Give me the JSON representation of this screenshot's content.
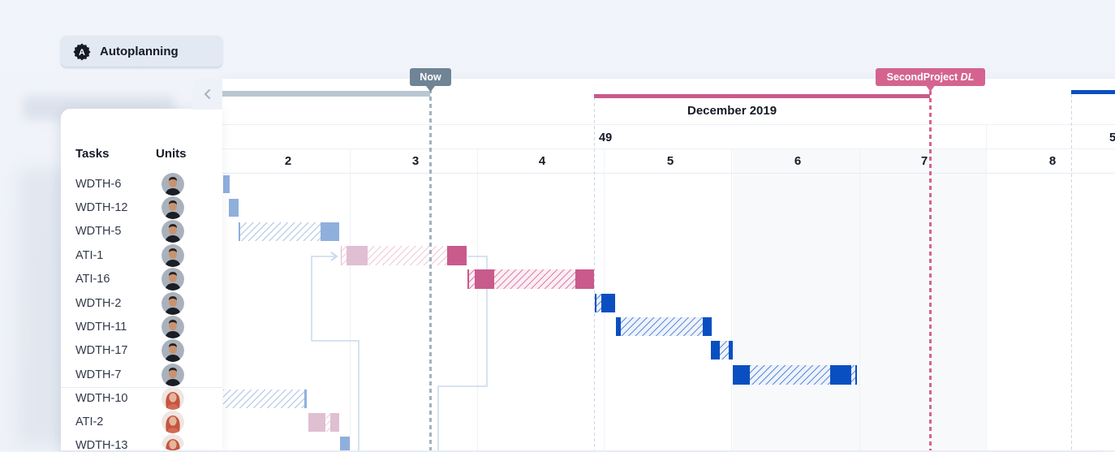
{
  "toolbar": {
    "autoplanning_label": "Autoplanning"
  },
  "left_panel": {
    "col_tasks": "Tasks",
    "col_units": "Units",
    "rows": [
      {
        "task": "WDTH-6",
        "unit": "man"
      },
      {
        "task": "WDTH-12",
        "unit": "man"
      },
      {
        "task": "WDTH-5",
        "unit": "man"
      },
      {
        "task": "ATI-1",
        "unit": "man"
      },
      {
        "task": "ATI-16",
        "unit": "man"
      },
      {
        "task": "WDTH-2",
        "unit": "man"
      },
      {
        "task": "WDTH-11",
        "unit": "man"
      },
      {
        "task": "WDTH-17",
        "unit": "man"
      },
      {
        "task": "WDTH-7",
        "unit": "man"
      },
      {
        "task": "WDTH-10",
        "unit": "woman"
      },
      {
        "task": "ATI-2",
        "unit": "woman"
      },
      {
        "task": "WDTH-13",
        "unit": "woman"
      }
    ]
  },
  "timeline": {
    "month": "December 2019",
    "week": "49",
    "week_next_partial": "5",
    "days": [
      "2",
      "3",
      "4",
      "5",
      "6",
      "7",
      "8"
    ]
  },
  "markers": {
    "now_label": "Now",
    "deadline_label_a": "SecondProject",
    "deadline_label_b": "DL"
  },
  "colors": {
    "blue_light": "#8fb0dd",
    "blue_dark": "#0a4fc2",
    "pink": "#c95a8c",
    "pink_light": "#e0b8cf",
    "now_gray": "#6f8494",
    "deadline_pink": "#d4648f"
  }
}
